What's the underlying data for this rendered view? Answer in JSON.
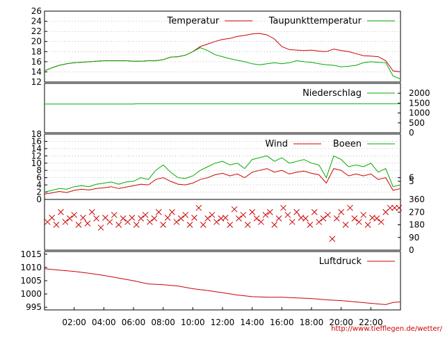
{
  "footer_url": "http://www.tiefflegen.de/wetter/",
  "x_ticks": [
    "02:00",
    "04:00",
    "06:00",
    "08:00",
    "10:00",
    "12:00",
    "14:00",
    "16:00",
    "18:00",
    "20:00",
    "22:00"
  ],
  "chart_data": [
    {
      "type": "line",
      "title": "",
      "xlabel": "",
      "ylabel": "",
      "ylim": [
        12,
        26
      ],
      "yticks_left": [
        12,
        14,
        16,
        18,
        20,
        22,
        24,
        26
      ],
      "grid": true,
      "legend": "top-right",
      "x_hours": [
        0,
        0.5,
        1,
        1.5,
        2,
        2.5,
        3,
        3.5,
        4,
        4.5,
        5,
        5.5,
        6,
        6.5,
        7,
        7.5,
        8,
        8.5,
        9,
        9.5,
        10,
        10.5,
        11,
        11.5,
        12,
        12.5,
        13,
        13.5,
        14,
        14.5,
        15,
        15.5,
        16,
        16.5,
        17,
        17.5,
        18,
        18.5,
        19,
        19.5,
        20,
        20.5,
        21,
        21.5,
        22,
        22.5,
        23,
        23.5,
        24
      ],
      "series": [
        {
          "name": "Temperatur",
          "color": "#cc0000",
          "values": [
            14.2,
            14.8,
            15.3,
            15.6,
            15.8,
            15.9,
            16.0,
            16.1,
            16.2,
            16.2,
            16.2,
            16.2,
            16.1,
            16.1,
            16.2,
            16.2,
            16.4,
            16.9,
            17.0,
            17.3,
            18.0,
            19.0,
            19.5,
            20.0,
            20.4,
            20.6,
            21.0,
            21.2,
            21.5,
            21.6,
            21.3,
            20.5,
            19.0,
            18.4,
            18.3,
            18.2,
            18.3,
            18.1,
            18.0,
            18.5,
            18.2,
            18.0,
            17.6,
            17.2,
            17.1,
            17.0,
            16.2,
            14.2,
            14.0
          ]
        },
        {
          "name": "Taupunkttemperatur",
          "color": "#00aa00",
          "values": [
            14.2,
            14.8,
            15.3,
            15.6,
            15.8,
            15.9,
            16.0,
            16.1,
            16.2,
            16.2,
            16.2,
            16.2,
            16.1,
            16.1,
            16.2,
            16.2,
            16.4,
            16.9,
            17.0,
            17.3,
            18.0,
            18.8,
            18.2,
            17.4,
            17.0,
            16.6,
            16.3,
            16.0,
            15.6,
            15.4,
            15.6,
            15.8,
            15.6,
            15.8,
            16.2,
            16.0,
            15.9,
            15.6,
            15.4,
            15.3,
            15.0,
            15.1,
            15.3,
            15.8,
            16.0,
            15.9,
            15.8,
            13.2,
            12.6
          ]
        }
      ]
    },
    {
      "type": "line",
      "title": "",
      "ylim": [
        0,
        2500
      ],
      "yticks_right": [
        0,
        500,
        1000,
        1500,
        2000
      ],
      "legend": "top-right",
      "x_hours": [
        0,
        6,
        6.2,
        24
      ],
      "series": [
        {
          "name": "Niederschlag",
          "color": "#00aa00",
          "values": [
            1450,
            1450,
            1470,
            1470
          ]
        }
      ]
    },
    {
      "type": "line",
      "title": "",
      "ylim": [
        0,
        18
      ],
      "yticks_left": [
        0,
        2,
        4,
        6,
        8,
        10,
        12,
        14,
        16,
        18
      ],
      "yticks_right": [
        5,
        6
      ],
      "grid": true,
      "legend": "top-right",
      "x_hours": [
        0,
        0.5,
        1,
        1.5,
        2,
        2.5,
        3,
        3.5,
        4,
        4.5,
        5,
        5.5,
        6,
        6.5,
        7,
        7.5,
        8,
        8.5,
        9,
        9.5,
        10,
        10.5,
        11,
        11.5,
        12,
        12.5,
        13,
        13.5,
        14,
        14.5,
        15,
        15.5,
        16,
        16.5,
        17,
        17.5,
        18,
        18.5,
        19,
        19.5,
        20,
        20.5,
        21,
        21.5,
        22,
        22.5,
        23,
        23.5,
        24
      ],
      "series": [
        {
          "name": "Wind",
          "color": "#cc0000",
          "values": [
            1.5,
            1.8,
            2.2,
            1.9,
            2.5,
            2.8,
            2.6,
            3.0,
            3.2,
            3.5,
            3.0,
            3.4,
            3.8,
            4.2,
            4.0,
            5.5,
            6.0,
            5.0,
            4.2,
            4.0,
            4.5,
            5.5,
            6.0,
            6.8,
            7.2,
            6.5,
            7.0,
            6.0,
            7.5,
            8.0,
            8.5,
            7.5,
            8.0,
            7.0,
            7.5,
            7.8,
            7.2,
            6.8,
            4.5,
            8.5,
            8.0,
            6.5,
            7.0,
            6.5,
            7.0,
            5.5,
            6.0,
            2.5,
            3.0
          ]
        },
        {
          "name": "Boeen",
          "color": "#00aa00",
          "values": [
            2.0,
            2.5,
            3.0,
            2.8,
            3.5,
            3.8,
            3.5,
            4.2,
            4.5,
            4.8,
            4.2,
            4.8,
            5.0,
            6.0,
            5.5,
            8.0,
            9.5,
            7.5,
            6.0,
            5.8,
            6.5,
            8.0,
            9.0,
            10.0,
            10.5,
            9.5,
            10.0,
            8.5,
            11.0,
            11.5,
            12.0,
            10.5,
            11.5,
            10.0,
            10.5,
            11.0,
            10.0,
            9.5,
            6.0,
            12.0,
            11.0,
            9.0,
            9.5,
            9.0,
            10.0,
            7.5,
            8.5,
            3.5,
            4.0
          ]
        }
      ]
    },
    {
      "type": "scatter",
      "title": "",
      "ylim": [
        0,
        360
      ],
      "yticks_right": [
        0,
        90,
        180,
        270,
        360
      ],
      "x_hours": [
        0.2,
        0.5,
        0.8,
        1.1,
        1.4,
        1.7,
        2.0,
        2.3,
        2.6,
        2.9,
        3.2,
        3.5,
        3.8,
        4.1,
        4.4,
        4.7,
        5.0,
        5.3,
        5.6,
        5.9,
        6.2,
        6.5,
        6.8,
        7.1,
        7.4,
        7.7,
        8.0,
        8.3,
        8.6,
        8.9,
        9.2,
        9.5,
        9.8,
        10.1,
        10.4,
        10.7,
        11.0,
        11.3,
        11.6,
        11.9,
        12.2,
        12.5,
        12.8,
        13.1,
        13.4,
        13.7,
        14.0,
        14.3,
        14.6,
        14.9,
        15.2,
        15.5,
        15.8,
        16.1,
        16.4,
        16.7,
        17.0,
        17.3,
        17.6,
        17.9,
        18.2,
        18.5,
        18.8,
        19.1,
        19.4,
        19.7,
        20.0,
        20.3,
        20.6,
        20.9,
        21.2,
        21.5,
        21.8,
        22.1,
        22.4,
        22.7,
        23.0,
        23.3,
        23.6,
        23.9
      ],
      "series": [
        {
          "name": "",
          "color": "#cc0000",
          "values": [
            200,
            230,
            180,
            270,
            200,
            225,
            250,
            180,
            230,
            190,
            270,
            225,
            160,
            230,
            200,
            250,
            180,
            225,
            200,
            230,
            180,
            225,
            250,
            200,
            225,
            270,
            180,
            230,
            270,
            200,
            225,
            250,
            180,
            230,
            300,
            180,
            225,
            250,
            200,
            225,
            230,
            180,
            290,
            225,
            250,
            180,
            270,
            225,
            200,
            250,
            270,
            180,
            225,
            300,
            250,
            200,
            270,
            230,
            225,
            180,
            270,
            200,
            225,
            250,
            80,
            225,
            270,
            180,
            300,
            225,
            200,
            250,
            180,
            230,
            225,
            200,
            270,
            300,
            300,
            300
          ]
        }
      ]
    },
    {
      "type": "line",
      "title": "",
      "ylim": [
        994,
        1016
      ],
      "yticks_left": [
        995,
        1000,
        1005,
        1010,
        1015
      ],
      "grid": false,
      "legend": "top-right",
      "x_hours": [
        0,
        1,
        2,
        3,
        4,
        5,
        6,
        7,
        8,
        9,
        10,
        11,
        12,
        13,
        14,
        15,
        16,
        17,
        18,
        19,
        20,
        21,
        22,
        23,
        23.5,
        24
      ],
      "series": [
        {
          "name": "Luftdruck",
          "color": "#cc0000",
          "values": [
            1009.5,
            1009.0,
            1008.5,
            1007.8,
            1007.0,
            1006.0,
            1005.0,
            1003.8,
            1003.5,
            1003.0,
            1002.0,
            1001.3,
            1000.5,
            999.6,
            999.0,
            998.8,
            998.8,
            998.5,
            998.3,
            997.8,
            997.5,
            997.0,
            996.5,
            996.0,
            996.8,
            997.0
          ]
        }
      ]
    }
  ]
}
